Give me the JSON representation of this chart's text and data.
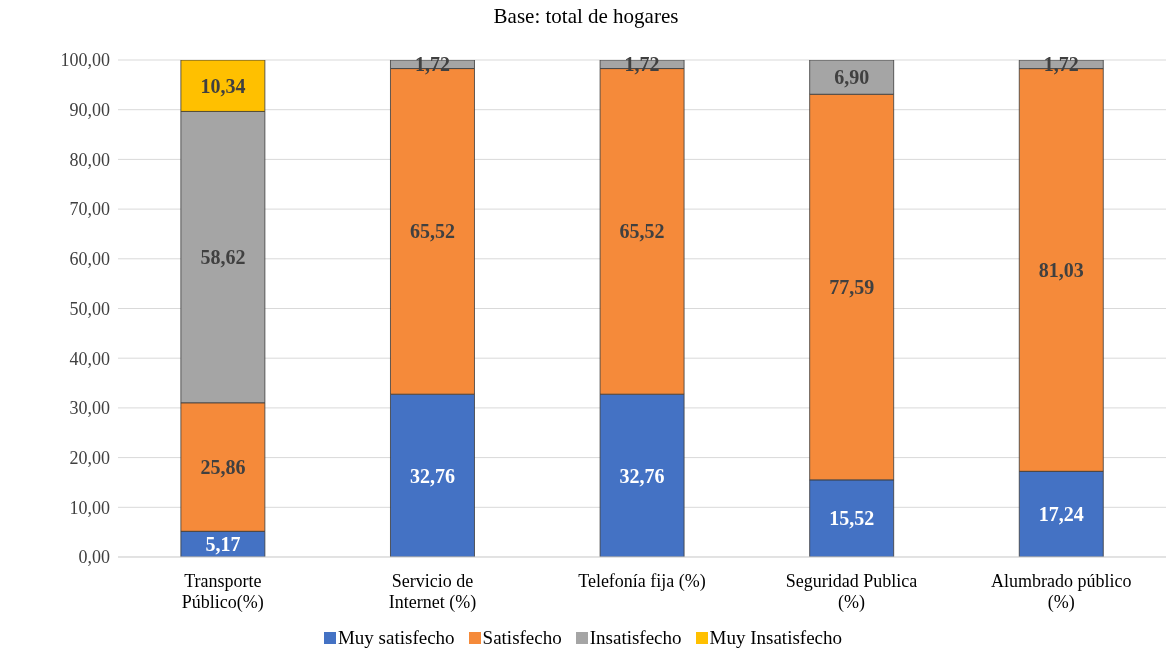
{
  "chart_data": {
    "type": "bar",
    "stacked": true,
    "title": "Base: total de hogares",
    "categories": [
      "Transporte Público(%)",
      "Servicio de Internet (%)",
      "Telefonía fija (%)",
      "Seguridad Publica (%)",
      "Alumbrado público (%)"
    ],
    "series": [
      {
        "name": "Muy satisfecho",
        "color": "#4472c4",
        "values": [
          5.17,
          32.76,
          32.76,
          15.52,
          17.24
        ],
        "value_labels": [
          "5,17",
          "32,76",
          "32,76",
          "15,52",
          "17,24"
        ]
      },
      {
        "name": "Satisfecho",
        "color": "#f58a3a",
        "values": [
          25.86,
          65.52,
          65.52,
          77.59,
          81.03
        ],
        "value_labels": [
          "25,86",
          "65,52",
          "65,52",
          "77,59",
          "81,03"
        ]
      },
      {
        "name": "Insatisfecho",
        "color": "#a5a5a5",
        "values": [
          58.62,
          1.72,
          1.72,
          6.9,
          1.72
        ],
        "value_labels": [
          "58,62",
          "1,72",
          "1,72",
          "6,90",
          "1,72"
        ]
      },
      {
        "name": "Muy Insatisfecho",
        "color": "#ffc000",
        "values": [
          10.34,
          null,
          null,
          null,
          null
        ],
        "value_labels": [
          "10,34",
          null,
          null,
          null,
          null
        ]
      }
    ],
    "ylim": [
      0,
      100
    ],
    "yticks": [
      {
        "value": 0,
        "label": "0,00"
      },
      {
        "value": 10,
        "label": "10,00"
      },
      {
        "value": 20,
        "label": "20,00"
      },
      {
        "value": 30,
        "label": "30,00"
      },
      {
        "value": 40,
        "label": "40,00"
      },
      {
        "value": 50,
        "label": "50,00"
      },
      {
        "value": 60,
        "label": "60,00"
      },
      {
        "value": 70,
        "label": "70,00"
      },
      {
        "value": 80,
        "label": "80,00"
      },
      {
        "value": 90,
        "label": "90,00"
      },
      {
        "value": 100,
        "label": "100,00"
      }
    ],
    "grid": "y",
    "legend": "bottom"
  }
}
